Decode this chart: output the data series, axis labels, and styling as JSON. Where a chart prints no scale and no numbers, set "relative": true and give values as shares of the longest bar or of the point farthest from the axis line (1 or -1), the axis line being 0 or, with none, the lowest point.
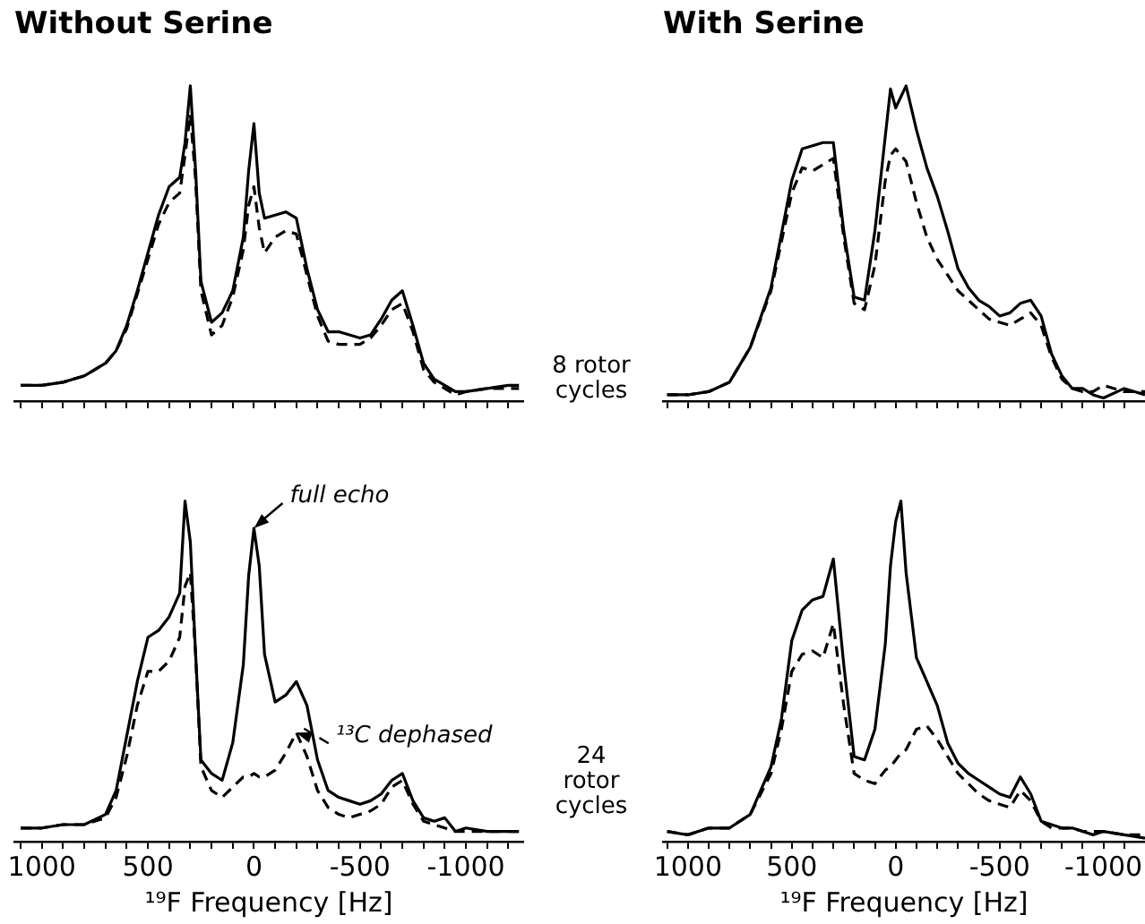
{
  "chart_data": [
    {
      "type": "line",
      "title": "Without Serine",
      "relative": true,
      "marker": "none",
      "tick_labels": false,
      "annotations": [
        "8 rotor cycles"
      ],
      "xlim": [
        1130,
        -1270
      ],
      "xticks": [
        {
          "value": 1100,
          "label": null
        },
        {
          "value": 1000,
          "label": null
        },
        {
          "value": 900,
          "label": null
        },
        {
          "value": 800,
          "label": null
        },
        {
          "value": 700,
          "label": null
        },
        {
          "value": 600,
          "label": null
        },
        {
          "value": 500,
          "label": null
        },
        {
          "value": 400,
          "label": null
        },
        {
          "value": 300,
          "label": null
        },
        {
          "value": 200,
          "label": null
        },
        {
          "value": 100,
          "label": null
        },
        {
          "value": 0,
          "label": null
        },
        {
          "value": -100,
          "label": null
        },
        {
          "value": -200,
          "label": null
        },
        {
          "value": -300,
          "label": null
        },
        {
          "value": -400,
          "label": null
        },
        {
          "value": -500,
          "label": null
        },
        {
          "value": -600,
          "label": null
        },
        {
          "value": -700,
          "label": null
        },
        {
          "value": -800,
          "label": null
        },
        {
          "value": -900,
          "label": null
        },
        {
          "value": -1000,
          "label": null
        },
        {
          "value": -1100,
          "label": null
        },
        {
          "value": -1200,
          "label": null
        }
      ],
      "x": [
        1100,
        1000,
        900,
        800,
        700,
        650,
        600,
        550,
        500,
        450,
        400,
        350,
        325,
        300,
        275,
        250,
        200,
        150,
        100,
        50,
        25,
        0,
        -25,
        -50,
        -100,
        -150,
        -200,
        -250,
        -300,
        -350,
        -400,
        -450,
        -500,
        -550,
        -600,
        -650,
        -700,
        -750,
        -800,
        -850,
        -900,
        -950,
        -1000,
        -1100,
        -1200,
        -1250
      ],
      "series": [
        {
          "color": "#000000",
          "line_style": "solid",
          "values": [
            0.05,
            0.05,
            0.06,
            0.08,
            0.12,
            0.16,
            0.24,
            0.35,
            0.47,
            0.59,
            0.68,
            0.71,
            0.82,
            1.0,
            0.73,
            0.38,
            0.25,
            0.28,
            0.35,
            0.52,
            0.73,
            0.88,
            0.66,
            0.58,
            0.59,
            0.6,
            0.58,
            0.42,
            0.29,
            0.22,
            0.22,
            0.21,
            0.2,
            0.21,
            0.26,
            0.32,
            0.35,
            0.24,
            0.12,
            0.07,
            0.05,
            0.03,
            0.03,
            0.04,
            0.05,
            0.05
          ]
        },
        {
          "color": "#000000",
          "line_style": "dashed",
          "values": [
            0.05,
            0.05,
            0.06,
            0.08,
            0.12,
            0.16,
            0.23,
            0.34,
            0.45,
            0.56,
            0.63,
            0.66,
            0.78,
            0.91,
            0.7,
            0.35,
            0.21,
            0.24,
            0.33,
            0.48,
            0.62,
            0.68,
            0.55,
            0.47,
            0.52,
            0.54,
            0.53,
            0.4,
            0.27,
            0.19,
            0.18,
            0.18,
            0.18,
            0.2,
            0.24,
            0.29,
            0.31,
            0.22,
            0.1,
            0.06,
            0.04,
            0.02,
            0.03,
            0.04,
            0.04,
            0.04
          ]
        }
      ]
    },
    {
      "type": "line",
      "title": "With Serine",
      "relative": true,
      "marker": "none",
      "tick_labels": false,
      "xlim": [
        1120,
        -1200
      ],
      "xticks": [
        {
          "value": 1100,
          "label": null
        },
        {
          "value": 1000,
          "label": null
        },
        {
          "value": 900,
          "label": null
        },
        {
          "value": 800,
          "label": null
        },
        {
          "value": 700,
          "label": null
        },
        {
          "value": 600,
          "label": null
        },
        {
          "value": 500,
          "label": null
        },
        {
          "value": 400,
          "label": null
        },
        {
          "value": 300,
          "label": null
        },
        {
          "value": 200,
          "label": null
        },
        {
          "value": 100,
          "label": null
        },
        {
          "value": 0,
          "label": null
        },
        {
          "value": -100,
          "label": null
        },
        {
          "value": -200,
          "label": null
        },
        {
          "value": -300,
          "label": null
        },
        {
          "value": -400,
          "label": null
        },
        {
          "value": -500,
          "label": null
        },
        {
          "value": -600,
          "label": null
        },
        {
          "value": -700,
          "label": null
        },
        {
          "value": -800,
          "label": null
        },
        {
          "value": -900,
          "label": null
        },
        {
          "value": -1000,
          "label": null
        },
        {
          "value": -1100,
          "label": null
        }
      ],
      "x": [
        1100,
        1000,
        900,
        800,
        700,
        600,
        500,
        450,
        400,
        350,
        300,
        250,
        200,
        150,
        100,
        50,
        25,
        0,
        -50,
        -100,
        -150,
        -200,
        -250,
        -300,
        -350,
        -400,
        -450,
        -500,
        -550,
        -600,
        -650,
        -700,
        -750,
        -800,
        -850,
        -900,
        -950,
        -1000,
        -1100,
        -1200
      ],
      "series": [
        {
          "color": "#000000",
          "line_style": "solid",
          "values": [
            0.02,
            0.02,
            0.03,
            0.06,
            0.17,
            0.36,
            0.7,
            0.8,
            0.81,
            0.82,
            0.82,
            0.54,
            0.33,
            0.32,
            0.54,
            0.84,
            0.99,
            0.93,
            1.0,
            0.86,
            0.74,
            0.65,
            0.54,
            0.42,
            0.36,
            0.32,
            0.3,
            0.27,
            0.28,
            0.31,
            0.32,
            0.27,
            0.15,
            0.08,
            0.04,
            0.04,
            0.02,
            0.01,
            0.04,
            0.02
          ]
        },
        {
          "color": "#000000",
          "line_style": "dashed",
          "values": [
            0.02,
            0.02,
            0.03,
            0.06,
            0.17,
            0.35,
            0.66,
            0.74,
            0.73,
            0.75,
            0.77,
            0.52,
            0.31,
            0.29,
            0.43,
            0.7,
            0.78,
            0.8,
            0.76,
            0.63,
            0.52,
            0.45,
            0.4,
            0.35,
            0.32,
            0.29,
            0.26,
            0.25,
            0.24,
            0.26,
            0.28,
            0.24,
            0.14,
            0.07,
            0.04,
            0.03,
            0.03,
            0.05,
            0.03,
            0.03
          ]
        }
      ]
    },
    {
      "type": "line",
      "xlabel": "¹⁹F Frequency [Hz]",
      "relative": true,
      "marker": "none",
      "tick_labels": "x",
      "annotations": [
        "24 rotor cycles"
      ],
      "xlim": [
        1130,
        -1270
      ],
      "xticks": [
        {
          "value": 1100,
          "label": null
        },
        1000,
        {
          "value": 900,
          "label": null
        },
        {
          "value": 800,
          "label": null
        },
        {
          "value": 700,
          "label": null
        },
        {
          "value": 600,
          "label": null
        },
        500,
        {
          "value": 400,
          "label": null
        },
        {
          "value": 300,
          "label": null
        },
        {
          "value": 200,
          "label": null
        },
        {
          "value": 100,
          "label": null
        },
        0,
        {
          "value": -100,
          "label": null
        },
        {
          "value": -200,
          "label": null
        },
        {
          "value": -300,
          "label": null
        },
        {
          "value": -400,
          "label": null
        },
        -500,
        {
          "value": -600,
          "label": null
        },
        {
          "value": -700,
          "label": null
        },
        {
          "value": -800,
          "label": null
        },
        {
          "value": -900,
          "label": null
        },
        -1000,
        {
          "value": -1100,
          "label": null
        },
        {
          "value": -1200,
          "label": null
        }
      ],
      "x": [
        1100,
        1000,
        900,
        800,
        700,
        650,
        600,
        550,
        500,
        450,
        400,
        350,
        325,
        300,
        275,
        250,
        200,
        150,
        100,
        50,
        25,
        0,
        -25,
        -50,
        -100,
        -150,
        -200,
        -250,
        -300,
        -350,
        -400,
        -450,
        -500,
        -550,
        -600,
        -650,
        -700,
        -750,
        -800,
        -850,
        -900,
        -950,
        -1000,
        -1100,
        -1200,
        -1250
      ],
      "series": [
        {
          "name": "full echo",
          "color": "#000000",
          "line_style": "solid",
          "values": [
            0.04,
            0.04,
            0.05,
            0.05,
            0.08,
            0.15,
            0.31,
            0.47,
            0.6,
            0.62,
            0.66,
            0.73,
            1.0,
            0.88,
            0.55,
            0.24,
            0.2,
            0.18,
            0.29,
            0.52,
            0.78,
            0.92,
            0.81,
            0.55,
            0.41,
            0.43,
            0.47,
            0.4,
            0.24,
            0.15,
            0.13,
            0.12,
            0.11,
            0.12,
            0.14,
            0.18,
            0.2,
            0.12,
            0.07,
            0.06,
            0.07,
            0.03,
            0.04,
            0.03,
            0.03,
            0.03
          ]
        },
        {
          "name": "¹³C dephased",
          "color": "#000000",
          "line_style": "dashed",
          "values": [
            0.04,
            0.04,
            0.05,
            0.05,
            0.07,
            0.13,
            0.25,
            0.4,
            0.5,
            0.5,
            0.53,
            0.6,
            0.75,
            0.79,
            0.55,
            0.22,
            0.15,
            0.13,
            0.16,
            0.19,
            0.19,
            0.2,
            0.19,
            0.19,
            0.21,
            0.26,
            0.32,
            0.25,
            0.15,
            0.1,
            0.08,
            0.07,
            0.08,
            0.09,
            0.11,
            0.16,
            0.18,
            0.11,
            0.06,
            0.05,
            0.04,
            0.03,
            0.03,
            0.03,
            0.03,
            0.03
          ]
        }
      ]
    },
    {
      "type": "line",
      "xlabel": "¹⁹F Frequency [Hz]",
      "relative": true,
      "marker": "none",
      "tick_labels": "x",
      "xlim": [
        1120,
        -1200
      ],
      "xticks": [
        {
          "value": 1100,
          "label": null
        },
        1000,
        {
          "value": 900,
          "label": null
        },
        {
          "value": 800,
          "label": null
        },
        {
          "value": 700,
          "label": null
        },
        {
          "value": 600,
          "label": null
        },
        500,
        {
          "value": 400,
          "label": null
        },
        {
          "value": 300,
          "label": null
        },
        {
          "value": 200,
          "label": null
        },
        {
          "value": 100,
          "label": null
        },
        0,
        {
          "value": -100,
          "label": null
        },
        {
          "value": -200,
          "label": null
        },
        {
          "value": -300,
          "label": null
        },
        {
          "value": -400,
          "label": null
        },
        -500,
        {
          "value": -600,
          "label": null
        },
        {
          "value": -700,
          "label": null
        },
        {
          "value": -800,
          "label": null
        },
        {
          "value": -900,
          "label": null
        },
        -1000,
        {
          "value": -1100,
          "label": null
        }
      ],
      "x": [
        1100,
        1000,
        900,
        800,
        700,
        600,
        550,
        500,
        450,
        400,
        350,
        300,
        250,
        200,
        150,
        100,
        50,
        25,
        0,
        -25,
        -50,
        -100,
        -150,
        -200,
        -250,
        -300,
        -350,
        -400,
        -450,
        -500,
        -550,
        -600,
        -650,
        -700,
        -750,
        -800,
        -850,
        -900,
        -950,
        -1000,
        -1100,
        -1200
      ],
      "series": [
        {
          "color": "#000000",
          "line_style": "solid",
          "values": [
            0.03,
            0.02,
            0.04,
            0.04,
            0.08,
            0.22,
            0.36,
            0.59,
            0.68,
            0.71,
            0.72,
            0.83,
            0.52,
            0.25,
            0.24,
            0.33,
            0.58,
            0.81,
            0.94,
            1.0,
            0.79,
            0.54,
            0.47,
            0.4,
            0.29,
            0.23,
            0.2,
            0.18,
            0.16,
            0.14,
            0.13,
            0.19,
            0.14,
            0.06,
            0.05,
            0.04,
            0.04,
            0.03,
            0.02,
            0.03,
            0.02,
            0.01
          ]
        },
        {
          "color": "#000000",
          "line_style": "dashed",
          "values": [
            0.03,
            0.02,
            0.04,
            0.04,
            0.08,
            0.2,
            0.33,
            0.5,
            0.55,
            0.56,
            0.54,
            0.64,
            0.4,
            0.2,
            0.18,
            0.17,
            0.21,
            0.22,
            0.24,
            0.26,
            0.27,
            0.33,
            0.34,
            0.3,
            0.25,
            0.2,
            0.17,
            0.14,
            0.12,
            0.11,
            0.1,
            0.15,
            0.12,
            0.06,
            0.04,
            0.04,
            0.04,
            0.03,
            0.03,
            0.03,
            0.02,
            0.02
          ]
        }
      ]
    }
  ]
}
